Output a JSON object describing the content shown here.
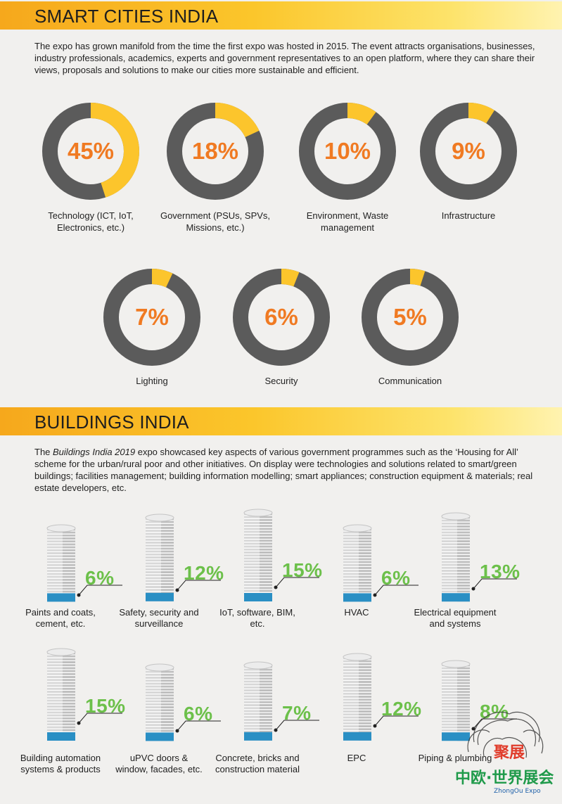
{
  "smart_cities": {
    "title": "SMART CITIES INDIA",
    "intro": "The expo has grown manifold from the time the first expo was hosted in 2015. The event attracts organisations, businesses, industry professionals, academics, experts and government representatives to an open platform, where they can share their views, proposals and solutions to make our cities more sustainable and efficient.",
    "segments": [
      {
        "value": 45,
        "pct": "45%",
        "label": "Technology (ICT, IoT, Electronics, etc.)"
      },
      {
        "value": 18,
        "pct": "18%",
        "label": "Government (PSUs, SPVs, Missions, etc.)"
      },
      {
        "value": 10,
        "pct": "10%",
        "label": "Environment, Waste management"
      },
      {
        "value": 9,
        "pct": "9%",
        "label": "Infrastructure"
      },
      {
        "value": 7,
        "pct": "7%",
        "label": "Lighting"
      },
      {
        "value": 6,
        "pct": "6%",
        "label": "Security"
      },
      {
        "value": 5,
        "pct": "5%",
        "label": "Communication"
      }
    ]
  },
  "buildings": {
    "title": "BUILDINGS INDIA",
    "intro_pre": "The ",
    "intro_em": "Buildings India 2019",
    "intro_post": " expo showcased key aspects of various government programmes such as the ‘Housing for All’ scheme for the urban/rural poor and other initiatives. On display were technologies and solutions related to smart/green buildings; facilities management; building information modelling; smart appliances; construction equipment & materials; real estate developers, etc.",
    "segments": [
      {
        "value": 6,
        "pct": "6%",
        "label": "Paints and coats, cement, etc."
      },
      {
        "value": 12,
        "pct": "12%",
        "label": "Safety, security and surveillance"
      },
      {
        "value": 15,
        "pct": "15%",
        "label": "IoT, software, BIM, etc."
      },
      {
        "value": 6,
        "pct": "6%",
        "label": "HVAC"
      },
      {
        "value": 13,
        "pct": "13%",
        "label": "Electrical equipment and systems"
      },
      {
        "value": 15,
        "pct": "15%",
        "label": "Building automation systems & products"
      },
      {
        "value": 6,
        "pct": "6%",
        "label": "uPVC doors & window, facades, etc."
      },
      {
        "value": 7,
        "pct": "7%",
        "label": "Concrete, bricks and construction material"
      },
      {
        "value": 12,
        "pct": "12%",
        "label": "EPC"
      },
      {
        "value": 8,
        "pct": "8%",
        "label": "Piping & plumbing"
      }
    ]
  },
  "watermark": {
    "text_cn": "聚展",
    "brand_cn": "中欧·世界展会",
    "brand_en": "ZhongOu Expo"
  },
  "colors": {
    "accent_orange": "#f07a22",
    "donut_fill": "#fcc52c",
    "donut_track": "#5b5b5b",
    "building_pct": "#6cc04a",
    "building_base": "#2a8fc4"
  }
}
